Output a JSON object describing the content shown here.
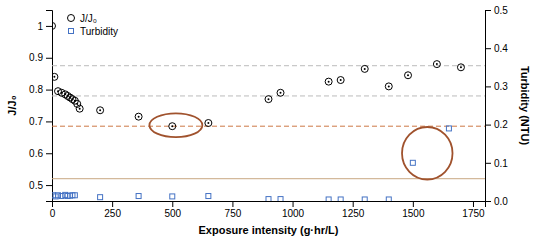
{
  "chart_data": {
    "type": "scatter",
    "xlabel": "Exposure intensity (g·hr/L)",
    "ylabel": "J/J₀",
    "y2label": "Turbidity (NTU)",
    "xlim": [
      0,
      1800
    ],
    "ylim": [
      0.45,
      1.05
    ],
    "y2lim": [
      0.0,
      0.5
    ],
    "xticks": [
      0,
      250,
      500,
      750,
      1000,
      1250,
      1500,
      1750
    ],
    "yticks": [
      0.5,
      0.6,
      0.7,
      0.8,
      0.9,
      1.0
    ],
    "y2ticks": [
      {
        "value": 0.0,
        "label": "0.0"
      },
      0.1,
      0.2,
      0.3,
      0.4,
      0.5
    ],
    "grid": false,
    "legend": "upper left",
    "series": [
      {
        "name": "J/J₀",
        "color": "black",
        "marker": "circle",
        "x": [
          0,
          10,
          25,
          40,
          55,
          65,
          75,
          85,
          95,
          105,
          115,
          200,
          360,
          500,
          650,
          900,
          950,
          1150,
          1200,
          1300,
          1400,
          1480,
          1600,
          1700
        ],
        "values": [
          1.0,
          0.84,
          0.795,
          0.79,
          0.785,
          0.78,
          0.775,
          0.77,
          0.765,
          0.755,
          0.74,
          0.735,
          0.715,
          0.685,
          0.695,
          0.77,
          0.79,
          0.825,
          0.83,
          0.865,
          0.81,
          0.845,
          0.88,
          0.87
        ]
      },
      {
        "name": "Turbidity",
        "color": "#4472C4",
        "marker": "square",
        "axis": "y2",
        "x": [
          5,
          15,
          25,
          40,
          55,
          65,
          75,
          85,
          95,
          200,
          360,
          500,
          650,
          900,
          950,
          1150,
          1200,
          1300,
          1400,
          1500,
          1650
        ],
        "values": [
          0.015,
          0.012,
          0.015,
          0.013,
          0.016,
          0.013,
          0.014,
          0.015,
          0.015,
          0.01,
          0.013,
          0.012,
          0.013,
          0.005,
          0.005,
          0.004,
          0.004,
          0.004,
          0.004,
          0.1,
          0.19
        ]
      }
    ],
    "hlines": [
      {
        "value": 0.875,
        "color": "#BBBBBB",
        "line_style": "dashed"
      },
      {
        "value": 0.78,
        "color": "#BBBBBB",
        "line_style": "dashed"
      },
      {
        "value": 0.685,
        "color": "#CC7744",
        "line_style": "dashed"
      },
      {
        "value": 0.52,
        "color": "#C8A882",
        "line_style": "solid"
      }
    ],
    "ellipses": [
      {
        "x": 515,
        "y": 0.688,
        "width": 220,
        "height": 0.075,
        "color": "#A0522D"
      },
      {
        "x": 1560,
        "y": 0.6,
        "width": 210,
        "height": 0.165,
        "color": "#A0522D"
      }
    ]
  }
}
